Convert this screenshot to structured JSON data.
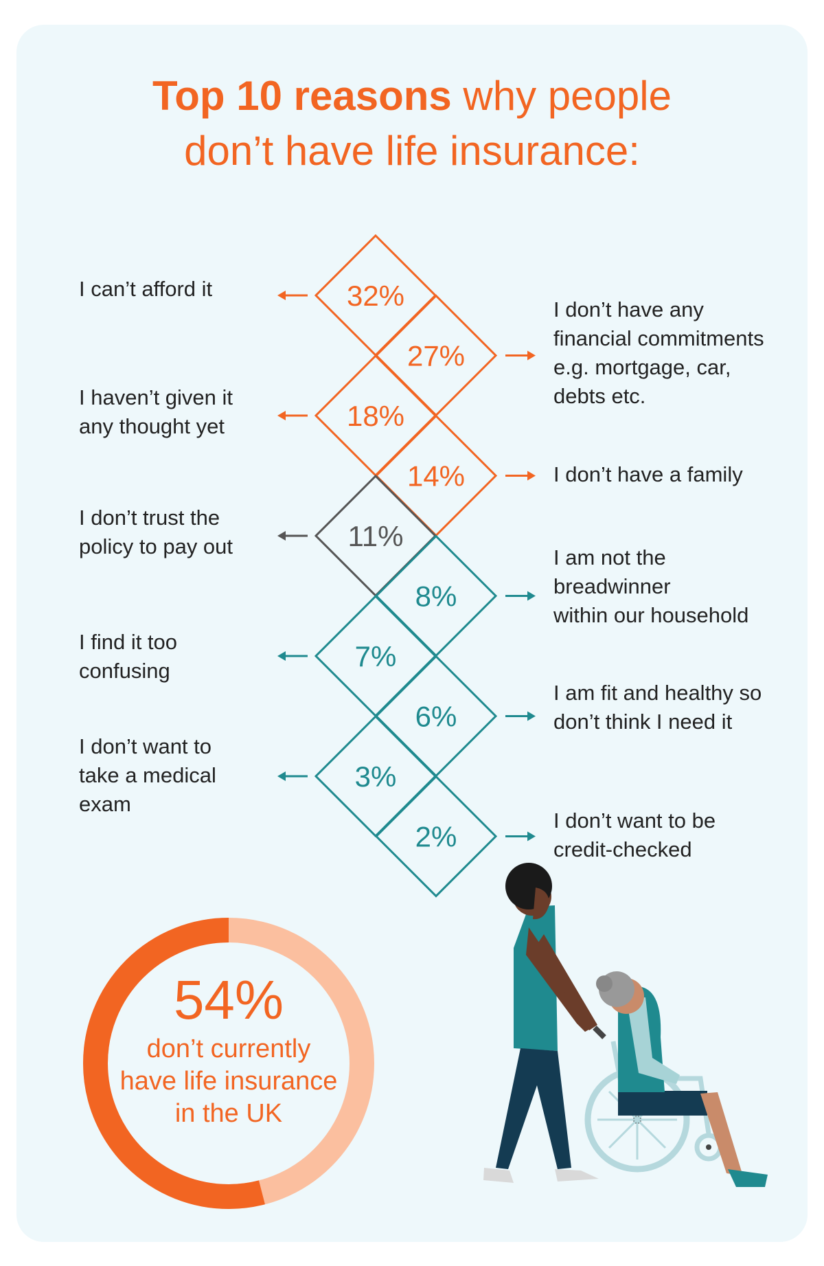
{
  "title": {
    "bold": "Top 10 reasons",
    "rest_line1": " why people",
    "line2": "don’t have life insurance:"
  },
  "colors": {
    "orange": "#f26522",
    "grey": "#555555",
    "teal": "#1f8a8f",
    "peach": "#fbbf9f",
    "background": "#eef8fb"
  },
  "chart_data": {
    "type": "bar",
    "title": "Top 10 reasons why people don’t have life insurance:",
    "unit": "%",
    "categories": [
      "I can’t afford it",
      "I don’t have any financial commitments e.g. mortgage, car, debts etc.",
      "I haven’t given it any thought yet",
      "I don’t have a family",
      "I don’t trust the policy to pay out",
      "I am not the breadwinner within our household",
      "I find it too confusing",
      "I am fit and healthy so don’t think I need it",
      "I don’t want to take a medical exam",
      "I don’t want to be credit-checked"
    ],
    "values": [
      32,
      27,
      18,
      14,
      11,
      8,
      7,
      6,
      3,
      2
    ],
    "value_labels": [
      "32%",
      "27%",
      "18%",
      "14%",
      "11%",
      "8%",
      "7%",
      "6%",
      "3%",
      "2%"
    ],
    "label_side": [
      "left",
      "right",
      "left",
      "right",
      "left",
      "right",
      "left",
      "right",
      "left",
      "right"
    ],
    "label_text": [
      "I can’t afford it",
      "I don’t have any\nfinancial commitments\ne.g. mortgage, car,\ndebts etc.",
      "I haven’t given it\nany thought yet",
      "I don’t have a family",
      "I don’t trust the\npolicy to pay out",
      "I am not the\nbreadwinner\nwithin our household",
      "I find it too\nconfusing",
      "I am fit and healthy so\ndon’t think I need it",
      "I don’t want to\ntake a medical\nexam",
      "I don’t want to be\ncredit-checked"
    ],
    "colors": [
      "#f26522",
      "#f26522",
      "#f26522",
      "#f26522",
      "#555555",
      "#1f8a8f",
      "#1f8a8f",
      "#1f8a8f",
      "#1f8a8f",
      "#1f8a8f"
    ],
    "legend": "none",
    "grid": false
  },
  "donut": {
    "value": 54,
    "percent_label": "54%",
    "caption": "don’t currently\nhave life insurance\nin the UK"
  },
  "illustration": {
    "name": "carer-pushing-wheelchair"
  }
}
